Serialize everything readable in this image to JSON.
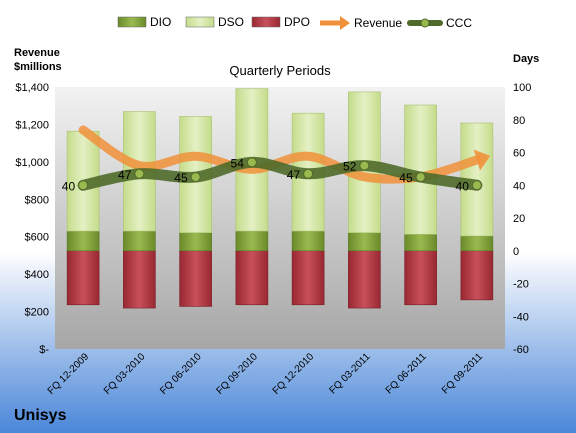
{
  "chart_data": {
    "type": "bar",
    "title": "Quarterly Periods",
    "company": "Unisys",
    "y_left_label": [
      "Revenue",
      "$millions"
    ],
    "y_right_label": "Days",
    "categories": [
      "FQ 12-2009",
      "FQ 03-2010",
      "FQ 06-2010",
      "FQ 09-2010",
      "FQ 12-2010",
      "FQ 03-2011",
      "FQ 06-2011",
      "FQ 09-2011"
    ],
    "y_left_ticks": [
      "$-",
      "$200",
      "$400",
      "$600",
      "$800",
      "$1,000",
      "$1,200",
      "$1,400"
    ],
    "y_left_range": [
      0,
      1400
    ],
    "y_right_range": [
      -60,
      100
    ],
    "y_right_ticks": [
      -60,
      -40,
      -20,
      0,
      20,
      40,
      60,
      80,
      100
    ],
    "legend_position": "top",
    "legend": [
      "DIO",
      "DSO",
      "DPO",
      "Revenue",
      "CCC"
    ],
    "series": [
      {
        "name": "DIO",
        "axis": "right",
        "stacked": true,
        "color": "#7a9a35",
        "values": [
          12,
          12,
          11,
          12,
          12,
          11,
          10,
          9
        ]
      },
      {
        "name": "DSO",
        "axis": "right",
        "stacked": true,
        "color": "#d6e8a8",
        "values": [
          61,
          73,
          71,
          87,
          72,
          86,
          79,
          69
        ]
      },
      {
        "name": "DPO",
        "axis": "right",
        "stacked": false,
        "negative": true,
        "color": "#b5343e",
        "values": [
          33,
          35,
          34,
          33,
          33,
          35,
          33,
          30
        ]
      },
      {
        "name": "Revenue",
        "axis": "left",
        "type": "line",
        "color": "#f0913a",
        "values": [
          1170,
          980,
          1030,
          960,
          1030,
          920,
          920,
          1010
        ]
      },
      {
        "name": "CCC",
        "axis": "right",
        "type": "line",
        "color": "#6a8a3a",
        "values": [
          40,
          47,
          45,
          54,
          47,
          52,
          45,
          40
        ]
      }
    ],
    "grid": false
  },
  "colors": {
    "plot_bg_top": "#f2f2f2",
    "plot_bg_bottom": "#a6a6a6",
    "page_bg_top": "#ffffff",
    "page_bg_bottom": "#4a86d8"
  }
}
